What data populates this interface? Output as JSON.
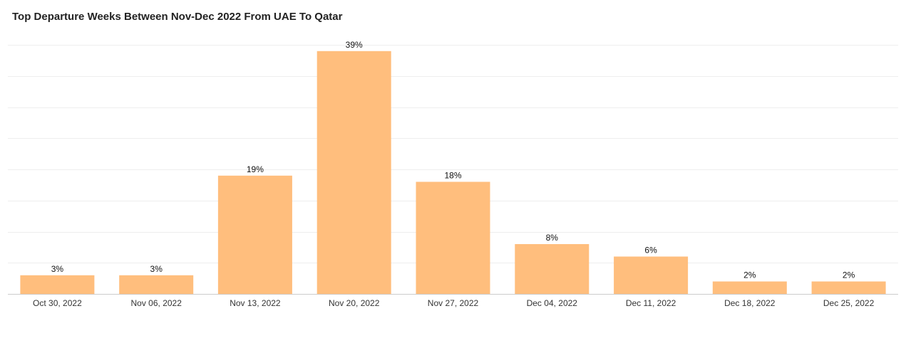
{
  "chart_data": {
    "type": "bar",
    "title": "Top Departure Weeks Between Nov-Dec 2022 From UAE To Qatar",
    "xlabel": "",
    "ylabel": "",
    "categories": [
      "Oct 30, 2022",
      "Nov 06, 2022",
      "Nov 13, 2022",
      "Nov 20, 2022",
      "Nov 27, 2022",
      "Dec 04, 2022",
      "Dec 11, 2022",
      "Dec 18, 2022",
      "Dec 25, 2022"
    ],
    "values": [
      3,
      3,
      19,
      39,
      18,
      8,
      6,
      2,
      2
    ],
    "value_labels": [
      "3%",
      "3%",
      "19%",
      "39%",
      "18%",
      "8%",
      "6%",
      "2%",
      "2%"
    ],
    "unit": "%",
    "ylim": [
      0,
      40
    ],
    "grid": true,
    "legend": "none",
    "colors": {
      "bar": "#FFBE7D",
      "grid": "#EEEEEE",
      "axis": "#CCCCCC",
      "text": "#333333"
    }
  }
}
